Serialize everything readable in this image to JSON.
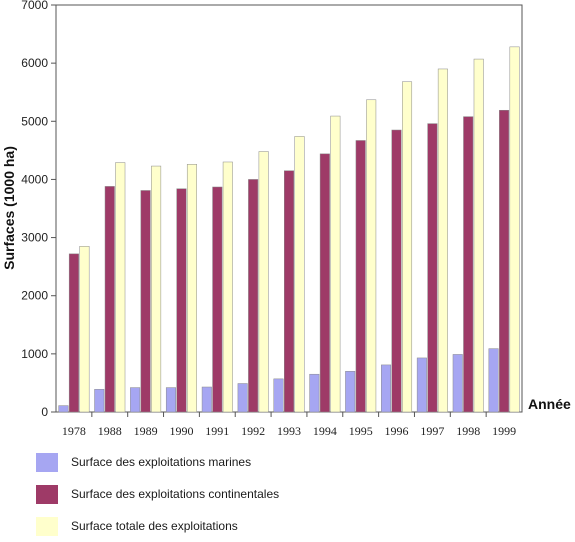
{
  "chart_data": {
    "type": "bar",
    "xlabel": "Année",
    "ylabel": "Surfaces (1000 ha)",
    "ylim": [
      0,
      7000
    ],
    "yticks": [
      0,
      1000,
      2000,
      3000,
      4000,
      5000,
      6000,
      7000
    ],
    "grid": false,
    "legend_position": "bottom",
    "categories": [
      "1978",
      "1988",
      "1989",
      "1990",
      "1991",
      "1992",
      "1993",
      "1994",
      "1995",
      "1996",
      "1997",
      "1998",
      "1999"
    ],
    "series": [
      {
        "name": "Surface des exploitations marines",
        "color": "#a6a6f2",
        "values": [
          110,
          390,
          420,
          420,
          430,
          490,
          570,
          650,
          700,
          810,
          930,
          990,
          1090
        ]
      },
      {
        "name": "Surface des exploitations continentales",
        "color": "#9e3a67",
        "values": [
          2720,
          3880,
          3810,
          3840,
          3870,
          4000,
          4150,
          4440,
          4670,
          4850,
          4960,
          5080,
          5190
        ]
      },
      {
        "name": "Surface totale des exploitations",
        "color": "#ffffcc",
        "values": [
          2850,
          4290,
          4230,
          4260,
          4300,
          4480,
          4740,
          5090,
          5370,
          5680,
          5900,
          6070,
          6280
        ]
      }
    ]
  }
}
